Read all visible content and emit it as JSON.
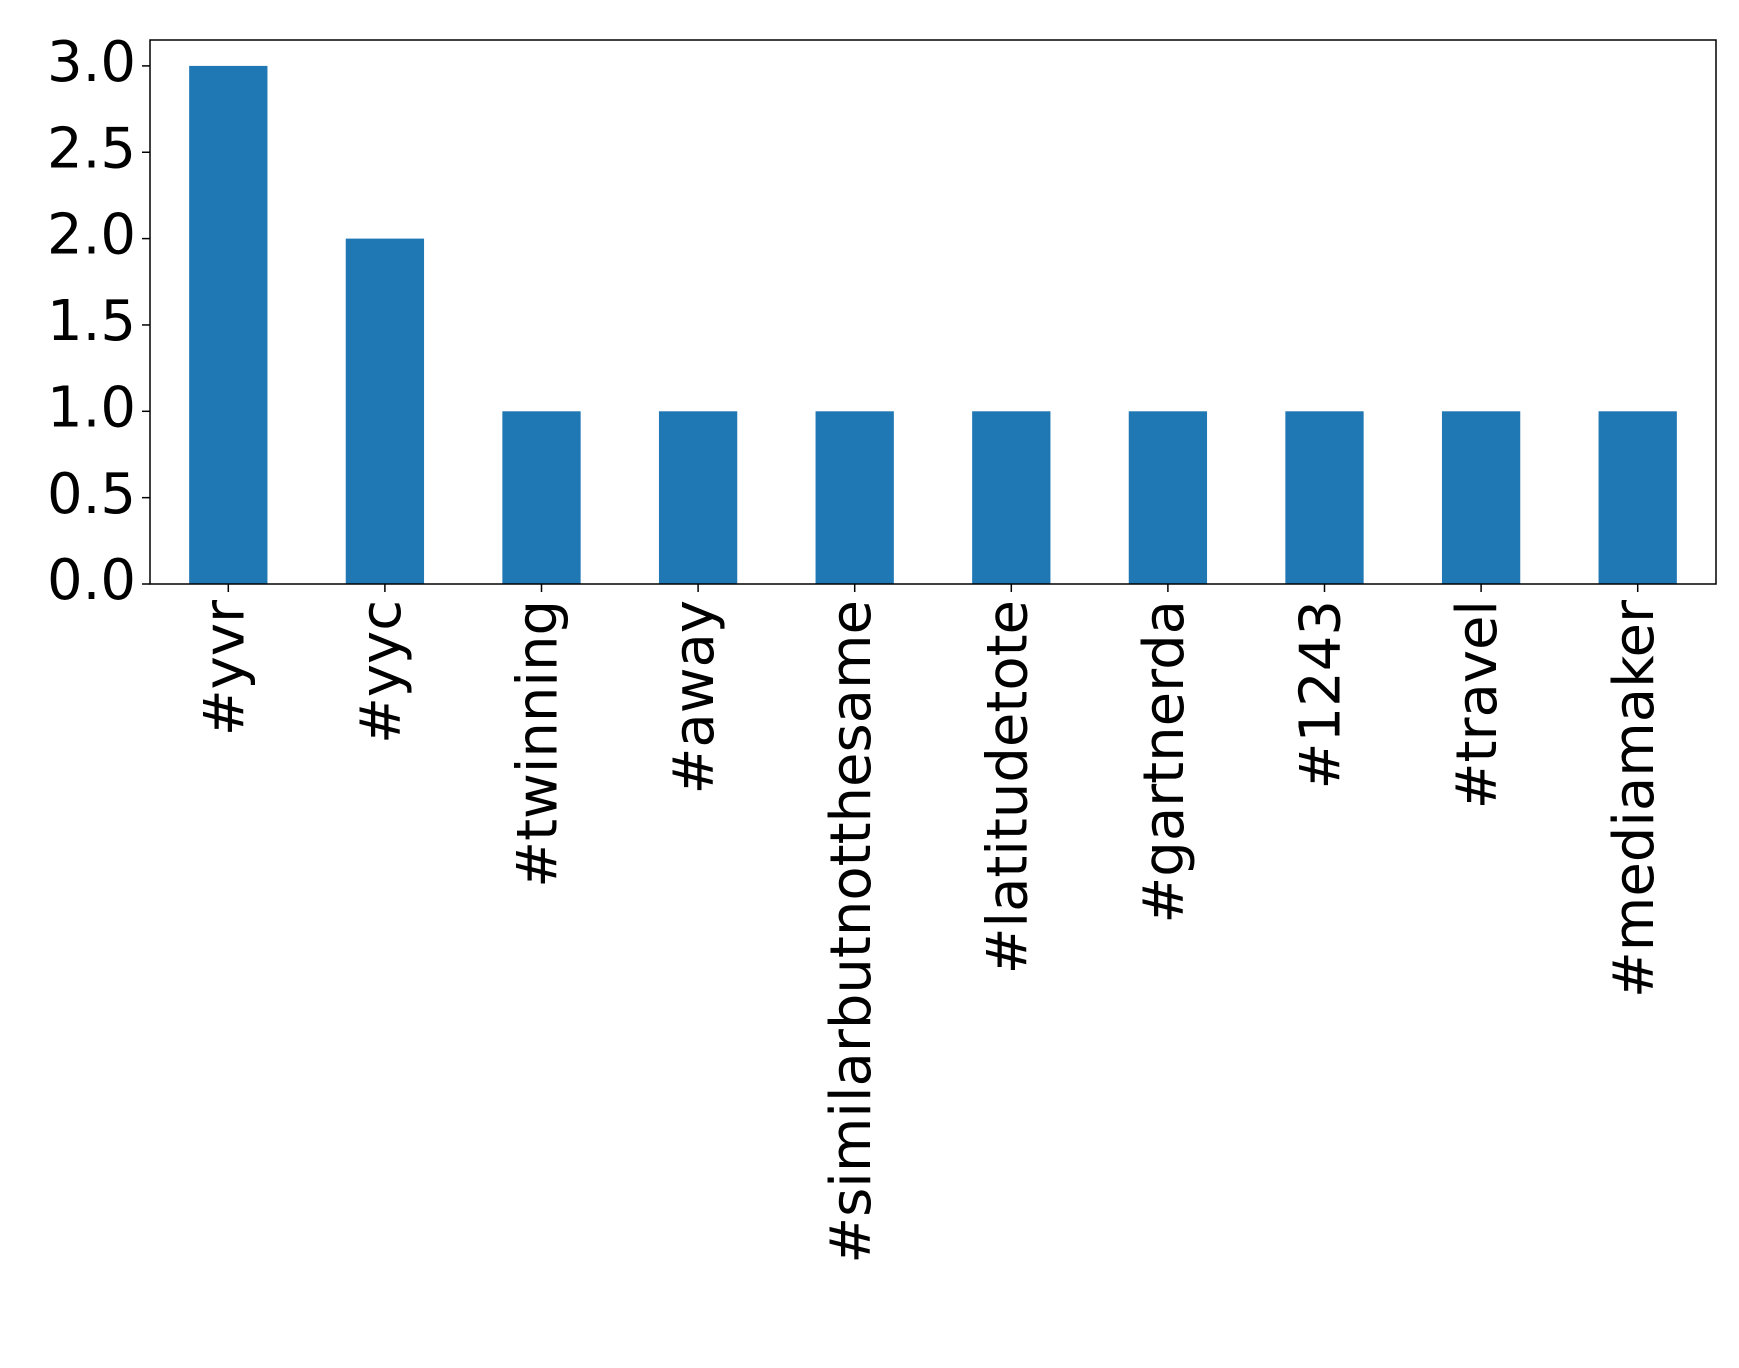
{
  "chart_data": {
    "type": "bar",
    "categories": [
      "#yvr",
      "#yyc",
      "#twinning",
      "#away",
      "#similarbutnotthesame",
      "#latitudetote",
      "#gartnerda",
      "#1243",
      "#travel",
      "#mediamaker"
    ],
    "values": [
      3,
      2,
      1,
      1,
      1,
      1,
      1,
      1,
      1,
      1
    ],
    "color": "#1f77b4",
    "ylim": [
      0,
      3.15
    ],
    "yticks": [
      {
        "value": 0,
        "label": "0.0"
      },
      0.5,
      {
        "value": 1,
        "label": "1.0"
      },
      1.5,
      {
        "value": 2,
        "label": "2.0"
      },
      2.5,
      {
        "value": 3,
        "label": "3.0"
      }
    ],
    "grid": false
  }
}
